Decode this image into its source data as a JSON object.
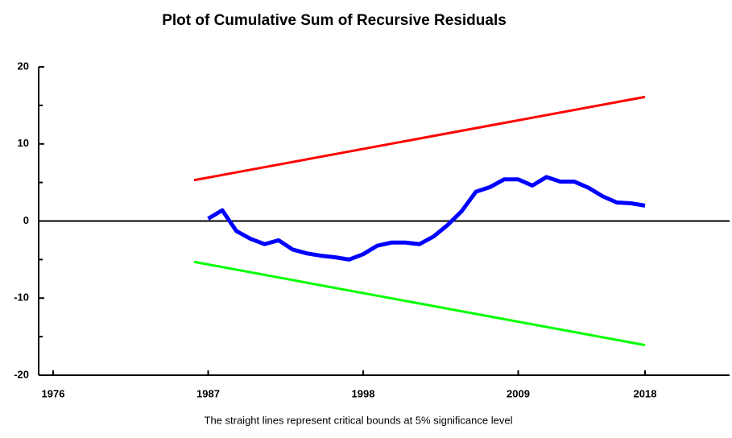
{
  "chart_data": {
    "type": "line",
    "title": "Plot of Cumulative Sum of Recursive Residuals",
    "note": "The straight lines represent critical bounds at 5% significance level",
    "xlim": [
      1976,
      2024
    ],
    "xticks": [
      1976,
      1987,
      1998,
      2009,
      2018
    ],
    "ylim": [
      -20,
      20
    ],
    "yticks": [
      -20,
      -10,
      0,
      10,
      20
    ],
    "series": [
      {
        "color": "#ff0000",
        "x": [
          1986,
          2018
        ],
        "values": [
          5.3,
          16.1
        ]
      },
      {
        "color": "#00ff00",
        "x": [
          1986,
          2018
        ],
        "values": [
          -5.3,
          -16.1
        ]
      },
      {
        "color": "#0000ff",
        "x": [
          1987,
          1988,
          1989,
          1990,
          1991,
          1992,
          1993,
          1994,
          1995,
          1996,
          1997,
          1998,
          1999,
          2000,
          2001,
          2002,
          2003,
          2004,
          2005,
          2006,
          2007,
          2008,
          2009,
          2010,
          2011,
          2012,
          2013,
          2014,
          2015,
          2016,
          2017,
          2018
        ],
        "values": [
          0.3,
          1.4,
          -1.3,
          -2.3,
          -3.0,
          -2.5,
          -3.7,
          -4.2,
          -4.5,
          -4.7,
          -5.0,
          -4.3,
          -3.2,
          -2.8,
          -2.8,
          -3.0,
          -2.0,
          -0.5,
          1.3,
          3.8,
          4.4,
          5.4,
          5.4,
          4.6,
          5.7,
          5.1,
          5.1,
          4.3,
          3.2,
          2.4,
          2.3,
          2.0
        ]
      }
    ]
  }
}
